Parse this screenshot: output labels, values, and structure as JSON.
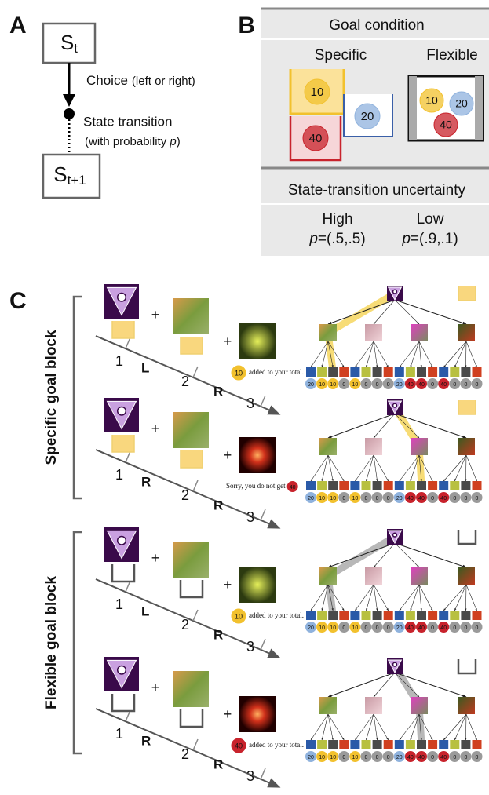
{
  "panel_a": {
    "label": "A",
    "state_t": {
      "s": "S",
      "sub": "t"
    },
    "state_t1": {
      "s": "S",
      "sub": "t+1"
    },
    "choice": "Choice",
    "choice_note": "(left or right)",
    "transition": "State transition",
    "transition_note": {
      "before": "(with probability ",
      "var": "p",
      "after": ")"
    }
  },
  "panel_b": {
    "label": "B",
    "goal_title": "Goal condition",
    "specific": "Specific",
    "flexible": "Flexible",
    "coins": [
      "10",
      "20",
      "40"
    ],
    "uncertainty_title": "State-transition uncertainty",
    "high": "High",
    "low": "Low",
    "high_p": {
      "var": "p",
      "rest": "=(.5,.5)"
    },
    "low_p": {
      "var": "p",
      "rest": "=(.9,.1)"
    }
  },
  "panel_c": {
    "label": "C",
    "plus": "+",
    "coin_colors": {
      "10": "#f2c12e",
      "20": "#8fb2dd",
      "40": "#c8232c",
      "0": "#9a9a9a"
    },
    "tree_outcomes": [
      "20",
      "10",
      "10",
      "0",
      "10",
      "0",
      "0",
      "0",
      "20",
      "40",
      "40",
      "0",
      "40",
      "0",
      "0",
      "0"
    ],
    "blocks": [
      {
        "title": "Specific goal block",
        "goal_color": "#f9d77e",
        "path_color": "#f4cd3c",
        "trials": [
          {
            "stage1": "1",
            "choice1": "L",
            "stage2": "2",
            "choice2": "R",
            "stage3": "3",
            "feedback": {
              "coin": "10",
              "after": "added to your total."
            }
          },
          {
            "stage1": "1",
            "choice1": "R",
            "stage2": "2",
            "choice2": "R",
            "stage3": "3",
            "feedback": {
              "before": "Sorry, you do not get",
              "coin": "40"
            }
          }
        ]
      },
      {
        "title": "Flexible goal block",
        "goal_color": "#ffffff",
        "path_color": "#9a9a9a",
        "trials": [
          {
            "stage1": "1",
            "choice1": "L",
            "stage2": "2",
            "choice2": "R",
            "stage3": "3",
            "feedback": {
              "coin": "10",
              "after": "added to your total."
            }
          },
          {
            "stage1": "1",
            "choice1": "R",
            "stage2": "2",
            "choice2": "R",
            "stage3": "3",
            "feedback": {
              "coin": "40",
              "after": "added to your total."
            }
          }
        ]
      }
    ]
  }
}
